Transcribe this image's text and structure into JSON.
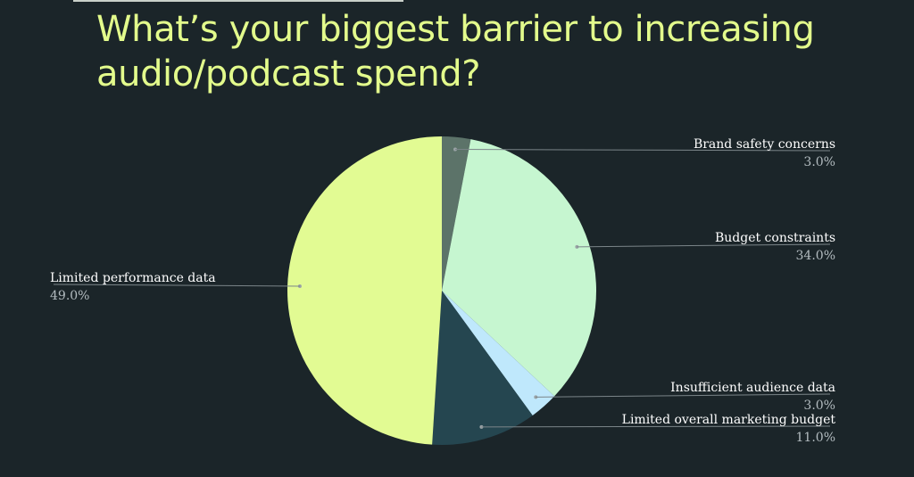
{
  "title": "What’s your biggest barrier to increasing audio/podcast spend?",
  "chart_data": {
    "type": "pie",
    "title": "What’s your biggest barrier to increasing audio/podcast spend?",
    "start_angle": "top, clockwise",
    "slices": [
      {
        "label": "Brand safety concerns",
        "value": 3.0,
        "value_label": "3.0%",
        "color": "#5c7369"
      },
      {
        "label": "Budget constraints",
        "value": 34.0,
        "value_label": "34.0%",
        "color": "#c6f6d0"
      },
      {
        "label": "Insufficient audience data",
        "value": 3.0,
        "value_label": "3.0%",
        "color": "#bfe8fc"
      },
      {
        "label": "Limited overall marketing budget",
        "value": 11.0,
        "value_label": "11.0%",
        "color": "#254650"
      },
      {
        "label": "Limited performance data",
        "value": 49.0,
        "value_label": "49.0%",
        "color": "#e2fb93"
      }
    ],
    "leader_line_color": "#7b8589"
  }
}
